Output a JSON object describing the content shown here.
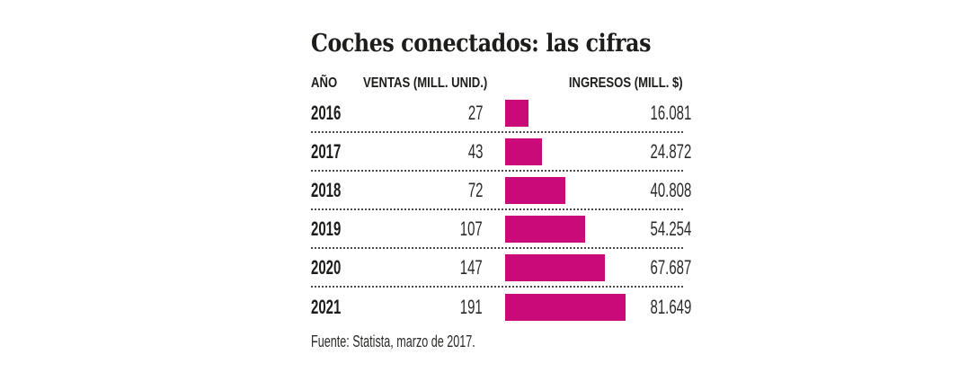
{
  "title": "Coches conectados: las cifras",
  "accent_color": "#cb0a7a",
  "table": {
    "columns": {
      "year": "AÑO",
      "ventas": "VENTAS (MILL. UNID.)",
      "ingresos": "INGRESOS (MILL. $)"
    },
    "rows": [
      {
        "year": "2016",
        "ventas": "27",
        "ingresos": "16.081",
        "ingresos_value": 16081
      },
      {
        "year": "2017",
        "ventas": "43",
        "ingresos": "24.872",
        "ingresos_value": 24872
      },
      {
        "year": "2018",
        "ventas": "72",
        "ingresos": "40.808",
        "ingresos_value": 40808
      },
      {
        "year": "2019",
        "ventas": "107",
        "ingresos": "54.254",
        "ingresos_value": 54254
      },
      {
        "year": "2020",
        "ventas": "147",
        "ingresos": "67.687",
        "ingresos_value": 67687
      },
      {
        "year": "2021",
        "ventas": "191",
        "ingresos": "81.649",
        "ingresos_value": 81649
      }
    ]
  },
  "source": "Fuente: Statista, marzo de 2017.",
  "chart_data": {
    "type": "bar",
    "orientation": "horizontal",
    "title": "Coches conectados: las cifras",
    "categories": [
      "2016",
      "2017",
      "2018",
      "2019",
      "2020",
      "2021"
    ],
    "series": [
      {
        "name": "VENTAS (MILL. UNID.)",
        "values": [
          27,
          43,
          72,
          107,
          147,
          191
        ]
      },
      {
        "name": "INGRESOS (MILL. $)",
        "values": [
          16081,
          24872,
          40808,
          54254,
          67687,
          81649
        ]
      }
    ],
    "bars_represent": "INGRESOS (MILL. $)",
    "xlim": [
      0,
      81649
    ],
    "bar_color": "#cb0a7a",
    "grid": "dotted row separators",
    "legend": "none",
    "source": "Fuente: Statista, marzo de 2017."
  }
}
